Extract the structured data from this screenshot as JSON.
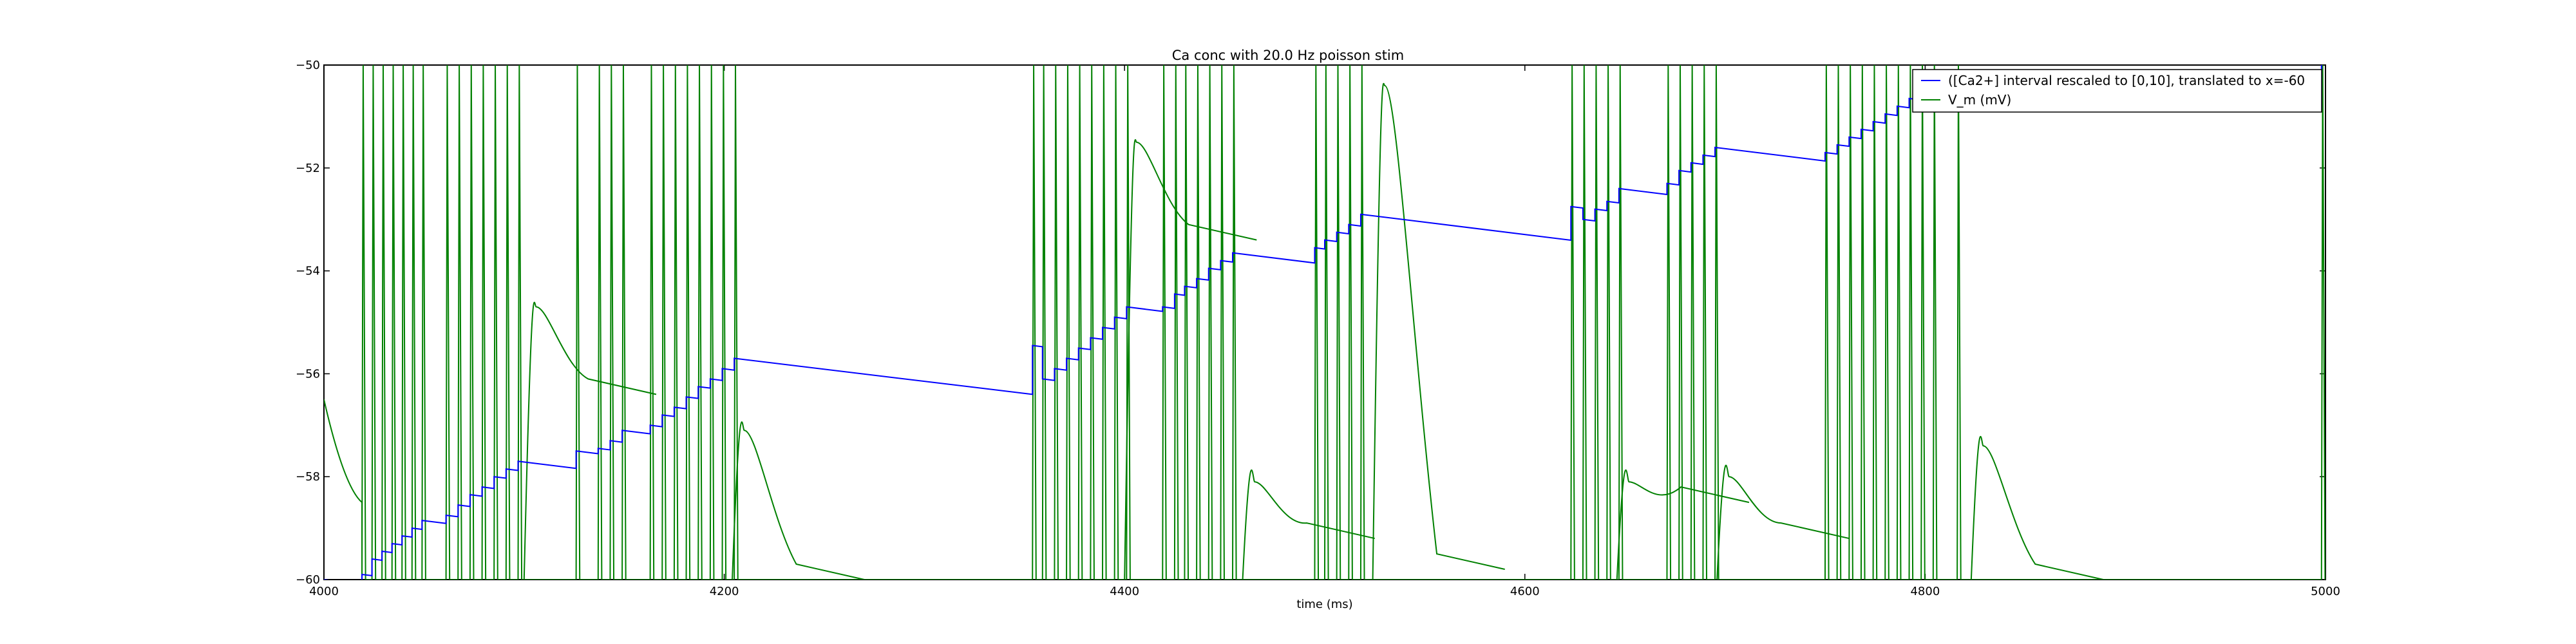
{
  "chart_data": {
    "type": "line",
    "title": "Ca conc with 20.0 Hz poisson stim",
    "xlabel": "time (ms)",
    "ylabel": "",
    "xlim": [
      4000,
      5000
    ],
    "ylim": [
      -60,
      -50
    ],
    "xticks": [
      4000,
      4200,
      4400,
      4600,
      4800,
      5000
    ],
    "yticks": [
      -60,
      -58,
      -56,
      -54,
      -52,
      -50
    ],
    "grid": false,
    "legend_position": "top-right",
    "spike_times": [
      4000,
      4019,
      4024,
      4029,
      4034,
      4039,
      4044,
      4049,
      4061,
      4067,
      4073,
      4079,
      4085,
      4091,
      4097,
      4126,
      4137,
      4143,
      4149,
      4163,
      4169,
      4175,
      4181,
      4187,
      4193,
      4199,
      4205,
      4354,
      4359,
      4365,
      4371,
      4377,
      4383,
      4389,
      4395,
      4401,
      4419,
      4425,
      4430,
      4436,
      4442,
      4448,
      4454,
      4495,
      4500,
      4506,
      4512,
      4518,
      4623,
      4629,
      4635,
      4641,
      4647,
      4671,
      4677,
      4683,
      4689,
      4695,
      4750,
      4756,
      4762,
      4768,
      4774,
      4780,
      4786,
      4792,
      4798,
      4804,
      4816,
      4998
    ],
    "series": [
      {
        "name": "([Ca2+] interval rescaled to [0,10], translated to x=-60",
        "color": "#0000ff",
        "x": [
          4000,
          4019,
          4024,
          4029,
          4034,
          4039,
          4044,
          4049,
          4061,
          4067,
          4073,
          4079,
          4085,
          4091,
          4097,
          4126,
          4137,
          4143,
          4149,
          4163,
          4169,
          4175,
          4181,
          4187,
          4193,
          4199,
          4205,
          4354,
          4359,
          4365,
          4371,
          4377,
          4383,
          4389,
          4395,
          4401,
          4419,
          4425,
          4430,
          4436,
          4442,
          4448,
          4454,
          4495,
          4500,
          4506,
          4512,
          4518,
          4623,
          4629,
          4635,
          4641,
          4647,
          4671,
          4677,
          4683,
          4689,
          4695,
          4750,
          4756,
          4762,
          4768,
          4774,
          4780,
          4786,
          4792,
          4798,
          4804,
          4816,
          4998
        ],
        "y": [
          -60.0,
          -59.9,
          -59.6,
          -59.45,
          -59.3,
          -59.15,
          -59.0,
          -58.85,
          -58.75,
          -58.55,
          -58.35,
          -58.2,
          -58.0,
          -57.85,
          -57.7,
          -57.5,
          -57.45,
          -57.3,
          -57.1,
          -57.0,
          -56.8,
          -56.65,
          -56.45,
          -56.25,
          -56.1,
          -55.9,
          -55.7,
          -55.45,
          -56.1,
          -55.9,
          -55.7,
          -55.5,
          -55.3,
          -55.1,
          -54.9,
          -54.7,
          -54.7,
          -54.45,
          -54.3,
          -54.15,
          -53.95,
          -53.8,
          -53.65,
          -53.55,
          -53.4,
          -53.25,
          -53.1,
          -52.9,
          -52.75,
          -53.0,
          -52.8,
          -52.65,
          -52.4,
          -52.3,
          -52.05,
          -51.9,
          -51.75,
          -51.6,
          -51.7,
          -51.55,
          -51.4,
          -51.25,
          -51.1,
          -50.95,
          -50.8,
          -50.65,
          -50.5,
          -50.35,
          -50.15,
          -50.0
        ]
      },
      {
        "name": "V_m (mV)",
        "color": "#008000",
        "bumps": [
          {
            "t": 4106,
            "peak": -54.7,
            "decay_to": -56.4
          },
          {
            "t": 4210,
            "peak": -57.1,
            "decay_to": -60.0
          },
          {
            "t": 4406,
            "peak": -51.5,
            "decay_to": -53.4
          },
          {
            "t": 4465,
            "peak": -58.1,
            "decay_to": -59.2
          },
          {
            "t": 4530,
            "peak": -50.4,
            "decay_to": -59.8
          },
          {
            "t": 4652,
            "peak": -58.1,
            "decay_to": -58.5
          },
          {
            "t": 4702,
            "peak": -58.0,
            "decay_to": -59.2
          },
          {
            "t": 4829,
            "peak": -57.4,
            "decay_to": -60.0
          }
        ]
      }
    ]
  }
}
